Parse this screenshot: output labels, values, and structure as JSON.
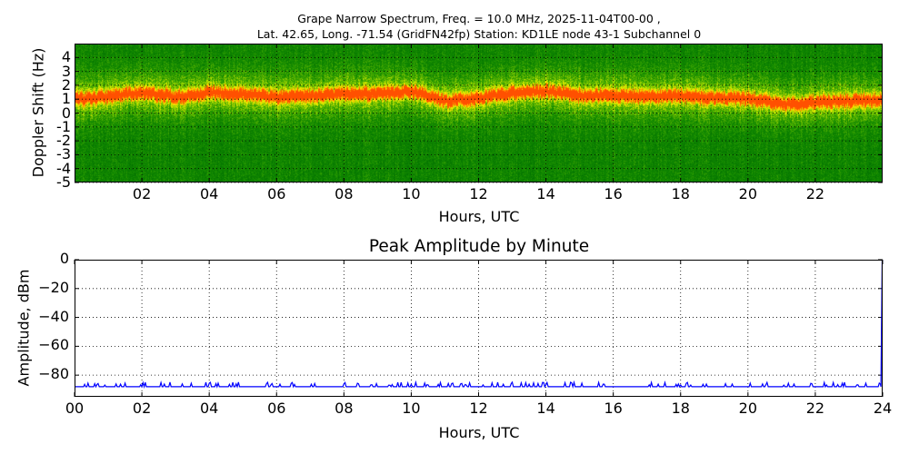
{
  "chart_data": [
    {
      "type": "heatmap",
      "title": "Grape Narrow Spectrum, Freq. = 10.0 MHz, 2025-11-04T00-00 ,",
      "subtitle": "Lat.  42.65, Long. -71.54 (GridFN42fp) Station: KD1LE node 43-1 Subchannel 0",
      "xlabel": "Hours, UTC",
      "ylabel": "Doppler Shift (Hz)",
      "xlim": [
        0,
        24
      ],
      "ylim": [
        -5,
        5
      ],
      "xticks": [
        "02",
        "04",
        "06",
        "08",
        "10",
        "12",
        "14",
        "16",
        "18",
        "20",
        "22"
      ],
      "yticks": [
        "4",
        "3",
        "2",
        "1",
        "0",
        "-1",
        "-2",
        "-3",
        "-4",
        "-5"
      ],
      "grid": true,
      "colormap": [
        "#007a00",
        "#3d9c00",
        "#9acd00",
        "#f0f000",
        "#ff8c00",
        "#ff4000"
      ],
      "peak_doppler_trace": {
        "hours": [
          0,
          1,
          2,
          3,
          4,
          5,
          6,
          7,
          8,
          9,
          10,
          11,
          12,
          13,
          14,
          15,
          16,
          17,
          18,
          19,
          20,
          21,
          22,
          23,
          24
        ],
        "doppler_hz": [
          1.0,
          1.2,
          1.5,
          1.2,
          1.5,
          1.4,
          1.2,
          1.3,
          1.4,
          1.4,
          1.6,
          0.9,
          1.1,
          1.5,
          1.6,
          1.3,
          1.3,
          1.2,
          1.3,
          1.1,
          1.1,
          0.7,
          0.8,
          0.9,
          1.0
        ]
      }
    },
    {
      "type": "line",
      "title": "Peak Amplitude by Minute",
      "xlabel": "Hours, UTC",
      "ylabel": "Amplitude, dBm",
      "xlim": [
        0,
        24
      ],
      "ylim": [
        -95,
        0
      ],
      "xticks": [
        "00",
        "02",
        "04",
        "06",
        "08",
        "10",
        "12",
        "14",
        "16",
        "18",
        "20",
        "22",
        "24"
      ],
      "yticks": [
        "0",
        "−20",
        "−40",
        "−60",
        "−80"
      ],
      "grid": true,
      "series": [
        {
          "name": "Peak Amplitude",
          "color": "#0000ff",
          "x": [
            0,
            1,
            2,
            3,
            4,
            5,
            6,
            7,
            8,
            9,
            10,
            11,
            12,
            13,
            14,
            15,
            16,
            17,
            18,
            19,
            20,
            21,
            22,
            23,
            23.95,
            24.0
          ],
          "values": [
            -88,
            -88,
            -88,
            -88,
            -88,
            -88,
            -88,
            -88,
            -88,
            -88,
            -88,
            -88,
            -88,
            -88,
            -88,
            -88,
            -88,
            -88,
            -88,
            -88,
            -88,
            -88,
            -88,
            -88,
            -88,
            0
          ]
        }
      ]
    }
  ],
  "spectrogram": {
    "title_line1": "Grape Narrow Spectrum, Freq. = 10.0 MHz, 2025-11-04T00-00 ,",
    "title_line2": "Lat.  42.65, Long. -71.54 (GridFN42fp) Station: KD1LE node 43-1 Subchannel 0",
    "xlabel": "Hours, UTC",
    "ylabel": "Doppler Shift (Hz)",
    "xticks": [
      "02",
      "04",
      "06",
      "08",
      "10",
      "12",
      "14",
      "16",
      "18",
      "20",
      "22"
    ],
    "yticks": [
      "4",
      "3",
      "2",
      "1",
      "0",
      "-1",
      "-2",
      "-3",
      "-4",
      "-5"
    ]
  },
  "amplitude": {
    "title": "Peak Amplitude by Minute",
    "xlabel": "Hours, UTC",
    "ylabel": "Amplitude, dBm",
    "xticks": [
      "00",
      "02",
      "04",
      "06",
      "08",
      "10",
      "12",
      "14",
      "16",
      "18",
      "20",
      "22",
      "24"
    ],
    "yticks": [
      "0",
      "−20",
      "−40",
      "−60",
      "−80"
    ]
  }
}
